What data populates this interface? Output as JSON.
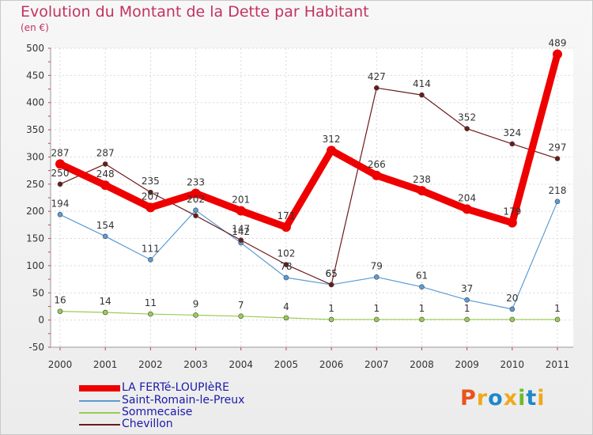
{
  "title": "Evolution du Montant de la Dette par Habitant",
  "unit": "(en €)",
  "logo": {
    "text": "Proxiti",
    "letters": [
      "P",
      "r",
      "o",
      "x",
      "i",
      "t",
      "i"
    ],
    "colors": [
      "#e8541d",
      "#f0a81c",
      "#1e88c9",
      "#f0a81c",
      "#6cbb2c",
      "#1e88c9",
      "#f0a81c"
    ]
  },
  "chart_data": {
    "type": "line",
    "x": [
      2000,
      2001,
      2002,
      2003,
      2004,
      2005,
      2006,
      2007,
      2008,
      2009,
      2010,
      2011
    ],
    "ylim": [
      -50,
      500
    ],
    "yticks": [
      -50,
      0,
      50,
      100,
      150,
      200,
      250,
      300,
      350,
      400,
      450,
      500
    ],
    "legend_position": "bottom-left",
    "series": [
      {
        "name": "LA FERTé-LOUPIèRE",
        "color": "#ee0000",
        "values": [
          287,
          248,
          207,
          233,
          201,
          171,
          312,
          266,
          238,
          204,
          179,
          489
        ],
        "labels": [
          "287",
          "248",
          "207",
          "233",
          "201",
          "171",
          "312",
          "266",
          "238",
          "204",
          "179",
          "489"
        ]
      },
      {
        "name": "Saint-Romain-le-Preux",
        "color": "#5b9bd5",
        "values": [
          194,
          154,
          111,
          202,
          142,
          78,
          65,
          79,
          61,
          37,
          20,
          218
        ],
        "labels": [
          "194",
          "154",
          "111",
          "202",
          "142",
          "78",
          "65",
          "79",
          "61",
          "37",
          "20",
          "218"
        ]
      },
      {
        "name": "Sommecaise",
        "color": "#99cc55",
        "values": [
          16,
          14,
          11,
          9,
          7,
          4,
          1,
          1,
          1,
          1,
          1,
          1
        ],
        "labels": [
          "16",
          "14",
          "11",
          "9",
          "7",
          "4",
          "1",
          "1",
          "1",
          "1",
          "",
          "1"
        ]
      },
      {
        "name": "Chevillon",
        "color": "#6b1a1a",
        "values": [
          250,
          287,
          235,
          192,
          147,
          102,
          65,
          427,
          414,
          352,
          324,
          297
        ],
        "labels": [
          "250",
          "287",
          "235",
          "",
          "147",
          "102",
          "65",
          "427",
          "414",
          "352",
          "324",
          "297"
        ]
      }
    ]
  }
}
